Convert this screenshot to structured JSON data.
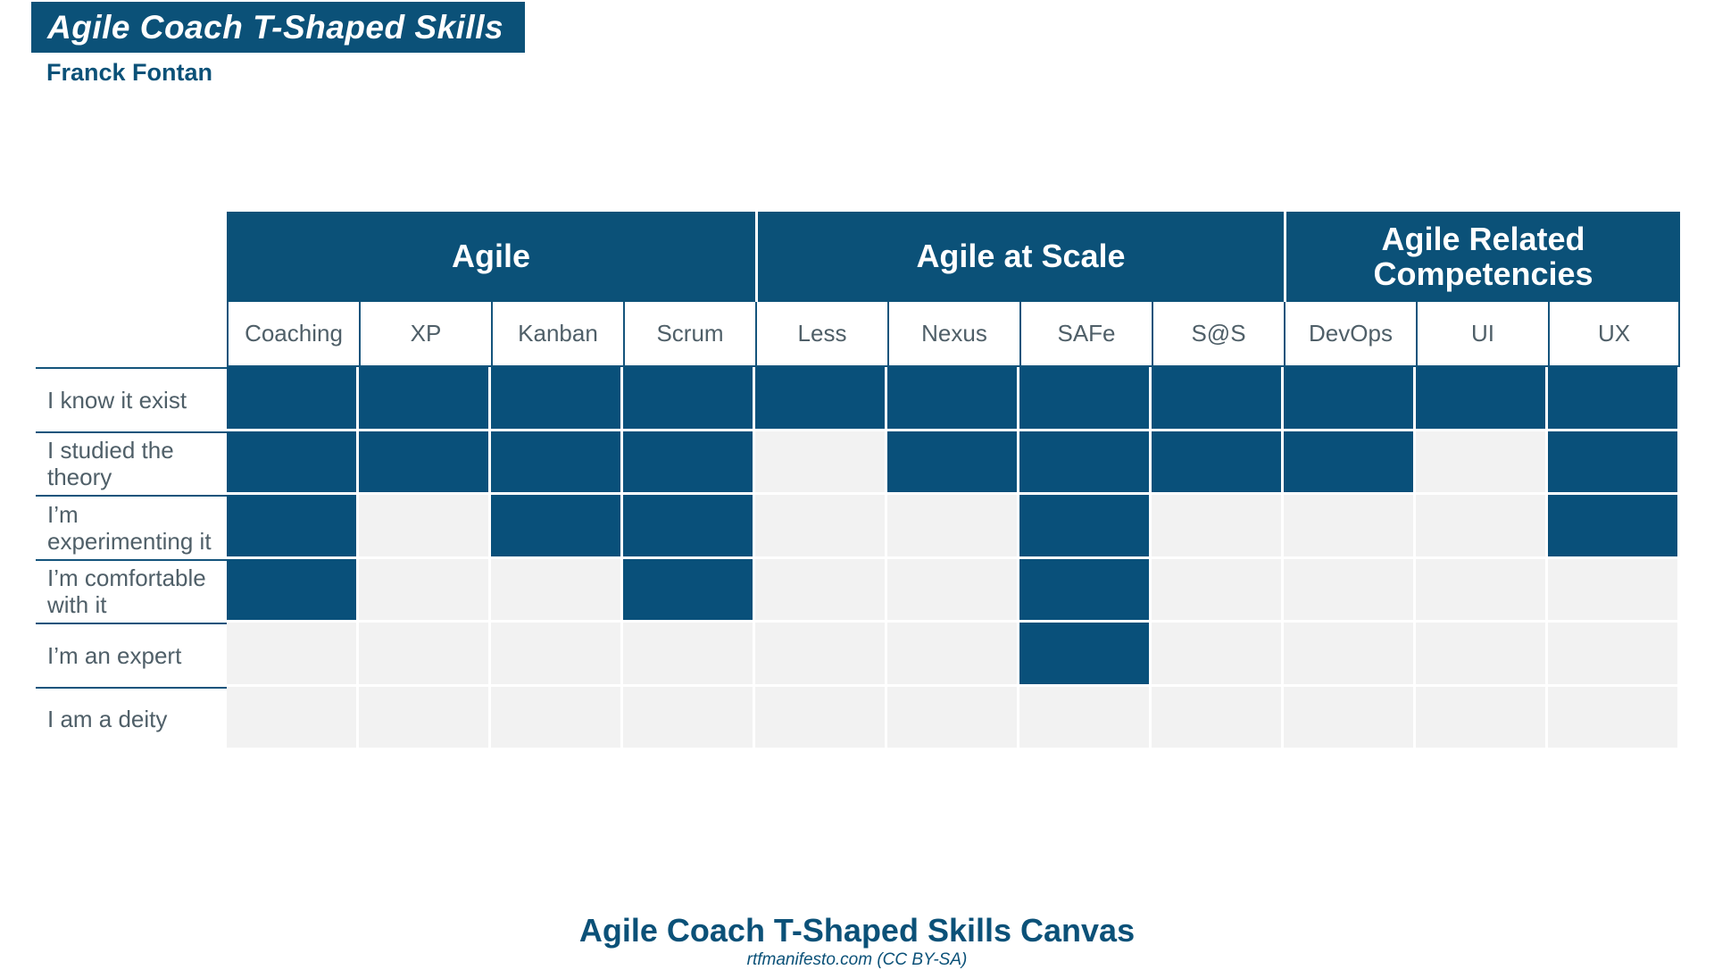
{
  "title": "Agile Coach T-Shaped Skills",
  "author": "Franck Fontan",
  "colors": {
    "primary_blue": "#0b5178",
    "filled_cell_blue": "#09507a",
    "empty_cell_gray": "#f2f2f2",
    "grid_line_blue": "#14547c",
    "label_text_gray": "#4f5f68"
  },
  "table": {
    "groups": [
      {
        "label": "Agile",
        "span": 4
      },
      {
        "label": "Agile at Scale",
        "span": 4
      },
      {
        "label": "Agile Related Competencies",
        "span": 3
      }
    ],
    "columns": [
      "Coaching",
      "XP",
      "Kanban",
      "Scrum",
      "Less",
      "Nexus",
      "SAFe",
      "S@S",
      "DevOps",
      "UI",
      "UX"
    ],
    "rows": [
      {
        "label": "I know it exist",
        "filled": [
          1,
          1,
          1,
          1,
          1,
          1,
          1,
          1,
          1,
          1,
          1
        ]
      },
      {
        "label": "I studied the theory",
        "filled": [
          1,
          1,
          1,
          1,
          0,
          1,
          1,
          1,
          1,
          0,
          1
        ]
      },
      {
        "label": "I’m experimenting it",
        "filled": [
          1,
          0,
          1,
          1,
          0,
          0,
          1,
          0,
          0,
          0,
          1
        ]
      },
      {
        "label": "I’m comfortable with it",
        "filled": [
          1,
          0,
          0,
          1,
          0,
          0,
          1,
          0,
          0,
          0,
          0
        ]
      },
      {
        "label": "I’m an expert",
        "filled": [
          0,
          0,
          0,
          0,
          0,
          0,
          1,
          0,
          0,
          0,
          0
        ]
      },
      {
        "label": "I am a deity",
        "filled": [
          0,
          0,
          0,
          0,
          0,
          0,
          0,
          0,
          0,
          0,
          0
        ]
      }
    ]
  },
  "footer": {
    "title": "Agile Coach T-Shaped Skills Canvas",
    "subtitle": "rtfmanifesto.com (CC BY-SA)"
  }
}
